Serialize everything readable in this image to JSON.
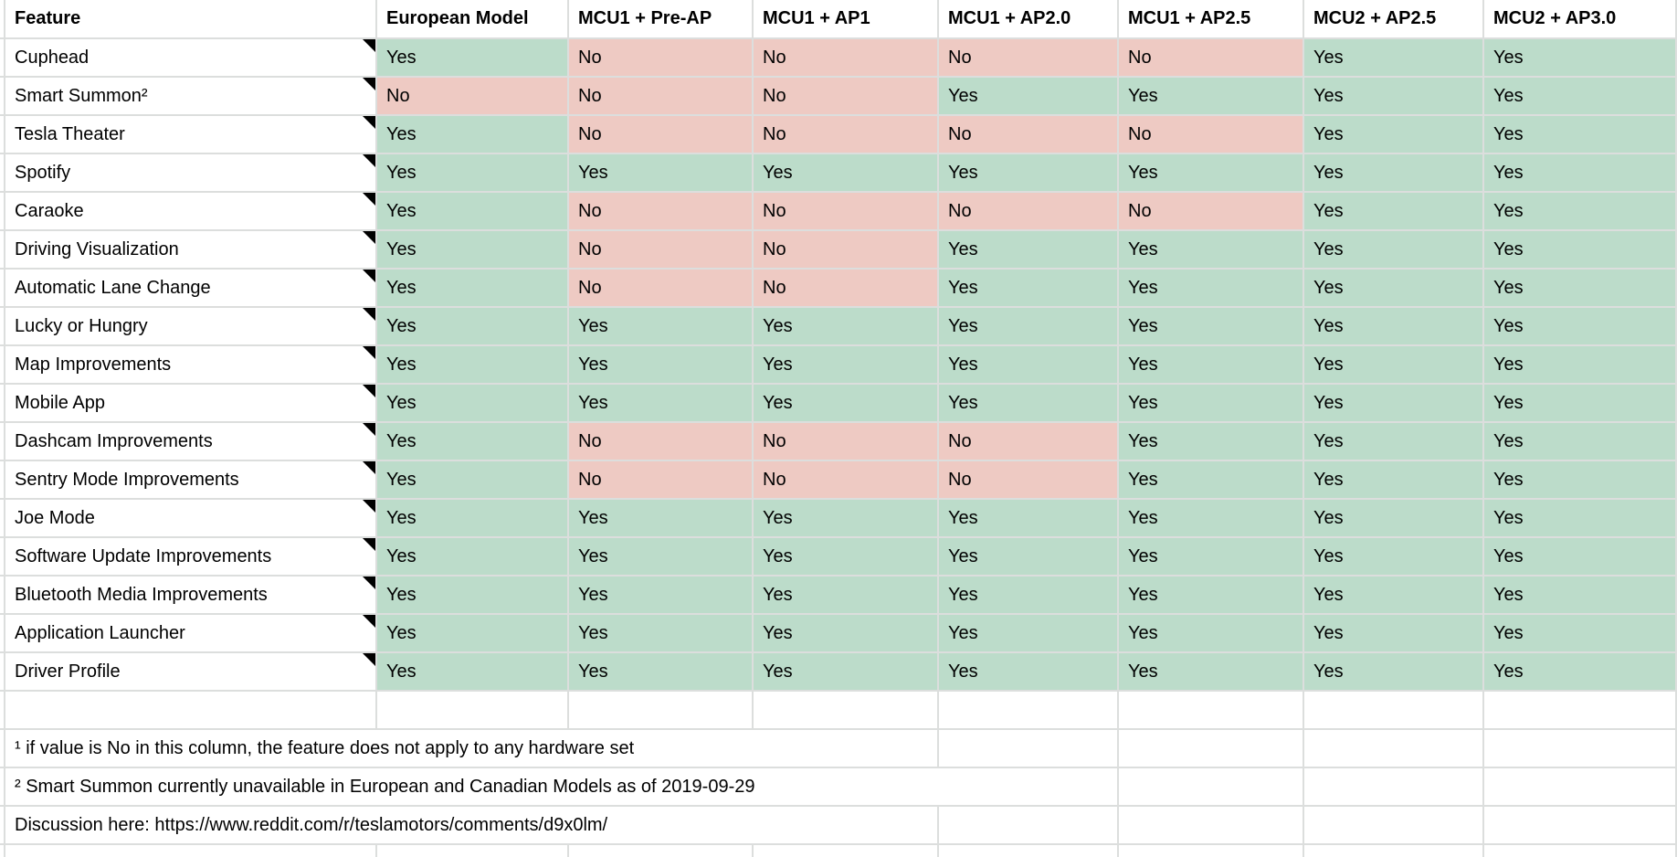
{
  "table": {
    "columns": [
      "Feature",
      "European Model",
      "MCU1 + Pre-AP",
      "MCU1 + AP1",
      "MCU1 + AP2.0",
      "MCU1 + AP2.5",
      "MCU2 + AP2.5",
      "MCU2 + AP3.0"
    ],
    "value_labels": {
      "yes": "Yes",
      "no": "No"
    },
    "rows": [
      {
        "feature": "Cuphead",
        "values": [
          "Yes",
          "No",
          "No",
          "No",
          "No",
          "Yes",
          "Yes"
        ]
      },
      {
        "feature": "Smart Summon²",
        "values": [
          "No",
          "No",
          "No",
          "Yes",
          "Yes",
          "Yes",
          "Yes"
        ]
      },
      {
        "feature": "Tesla Theater",
        "values": [
          "Yes",
          "No",
          "No",
          "No",
          "No",
          "Yes",
          "Yes"
        ]
      },
      {
        "feature": "Spotify",
        "values": [
          "Yes",
          "Yes",
          "Yes",
          "Yes",
          "Yes",
          "Yes",
          "Yes"
        ]
      },
      {
        "feature": "Caraoke",
        "values": [
          "Yes",
          "No",
          "No",
          "No",
          "No",
          "Yes",
          "Yes"
        ]
      },
      {
        "feature": "Driving Visualization",
        "values": [
          "Yes",
          "No",
          "No",
          "Yes",
          "Yes",
          "Yes",
          "Yes"
        ]
      },
      {
        "feature": "Automatic Lane Change",
        "values": [
          "Yes",
          "No",
          "No",
          "Yes",
          "Yes",
          "Yes",
          "Yes"
        ]
      },
      {
        "feature": "Lucky or Hungry",
        "values": [
          "Yes",
          "Yes",
          "Yes",
          "Yes",
          "Yes",
          "Yes",
          "Yes"
        ]
      },
      {
        "feature": "Map Improvements",
        "values": [
          "Yes",
          "Yes",
          "Yes",
          "Yes",
          "Yes",
          "Yes",
          "Yes"
        ]
      },
      {
        "feature": "Mobile App",
        "values": [
          "Yes",
          "Yes",
          "Yes",
          "Yes",
          "Yes",
          "Yes",
          "Yes"
        ]
      },
      {
        "feature": "Dashcam Improvements",
        "values": [
          "Yes",
          "No",
          "No",
          "No",
          "Yes",
          "Yes",
          "Yes"
        ]
      },
      {
        "feature": "Sentry Mode Improvements",
        "values": [
          "Yes",
          "No",
          "No",
          "No",
          "Yes",
          "Yes",
          "Yes"
        ]
      },
      {
        "feature": "Joe Mode",
        "values": [
          "Yes",
          "Yes",
          "Yes",
          "Yes",
          "Yes",
          "Yes",
          "Yes"
        ]
      },
      {
        "feature": "Software Update Improvements",
        "values": [
          "Yes",
          "Yes",
          "Yes",
          "Yes",
          "Yes",
          "Yes",
          "Yes"
        ]
      },
      {
        "feature": "Bluetooth Media Improvements",
        "values": [
          "Yes",
          "Yes",
          "Yes",
          "Yes",
          "Yes",
          "Yes",
          "Yes"
        ]
      },
      {
        "feature": "Application Launcher",
        "values": [
          "Yes",
          "Yes",
          "Yes",
          "Yes",
          "Yes",
          "Yes",
          "Yes"
        ]
      },
      {
        "feature": "Driver Profile",
        "values": [
          "Yes",
          "Yes",
          "Yes",
          "Yes",
          "Yes",
          "Yes",
          "Yes"
        ]
      }
    ],
    "note_indicator": "black-corner-triangle"
  },
  "notes": [
    {
      "text": "¹ if value is No in this column, the feature does not apply to any hardware set"
    },
    {
      "text": "² Smart Summon currently unavailable in European and Canadian Models as of 2019-09-29"
    },
    {
      "text": "Discussion here: https://www.reddit.com/r/teslamotors/comments/d9x0lm/"
    }
  ],
  "colors": {
    "yes_cell": "#bcdcca",
    "no_cell": "#eecac3",
    "gridline": "#dcdedd",
    "text": "#000000"
  }
}
